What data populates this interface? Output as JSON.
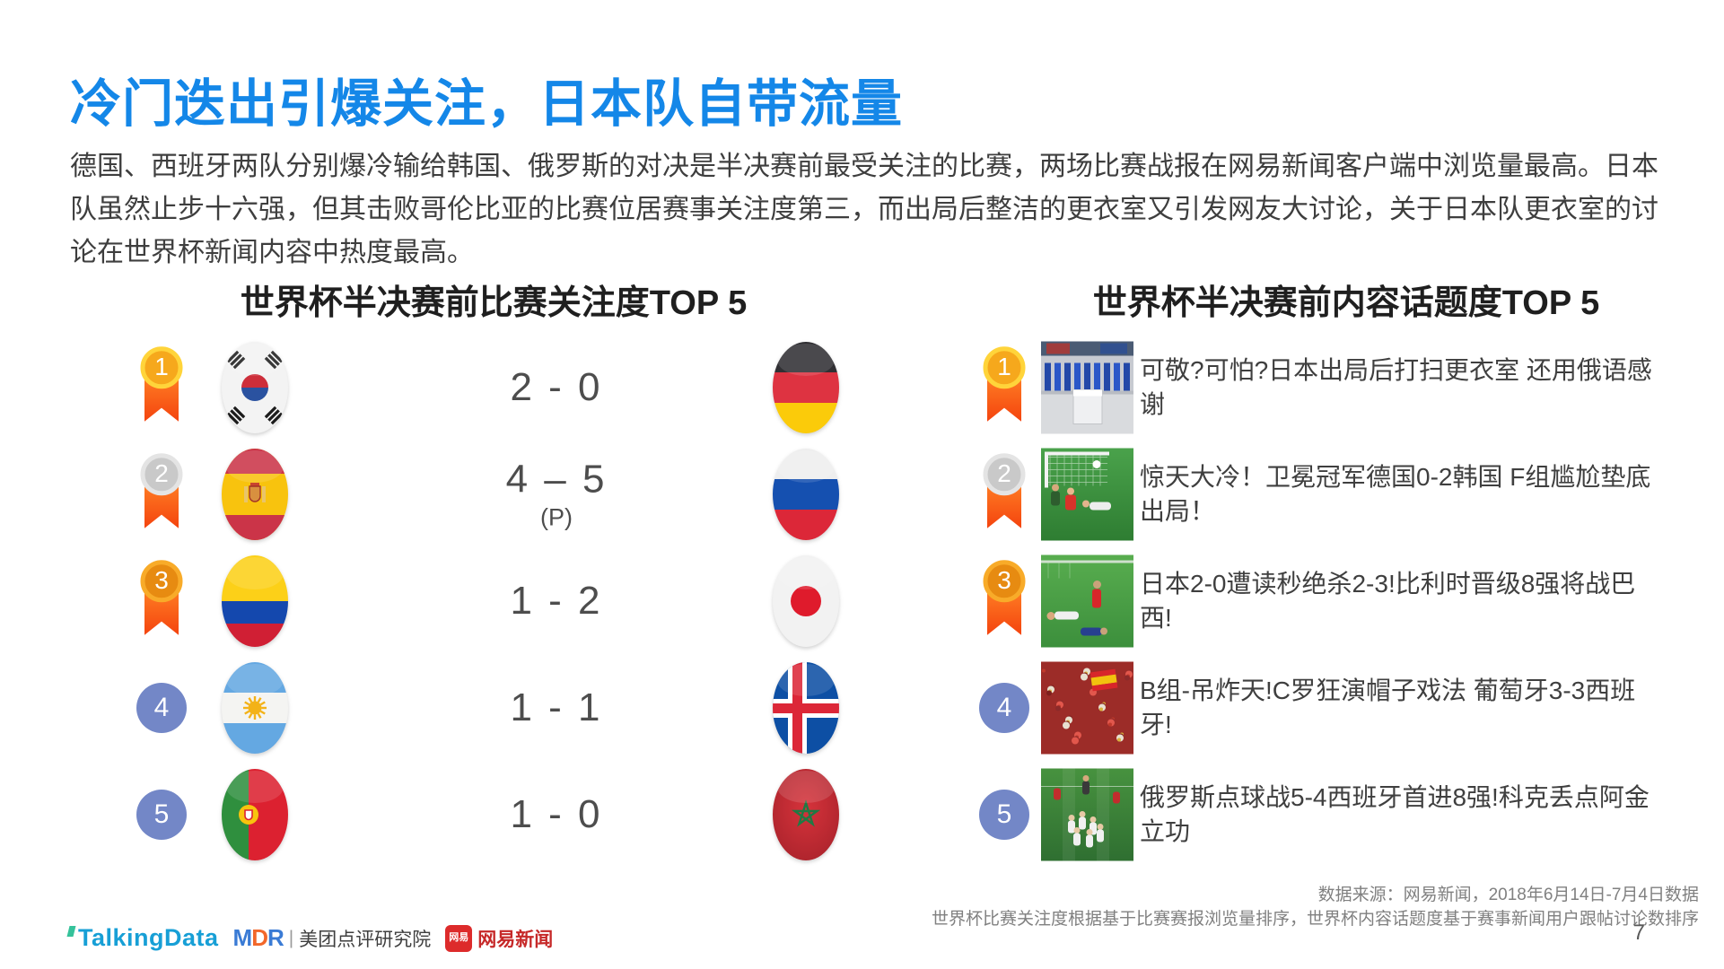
{
  "title": "冷门迭出引爆关注，日本队自带流量",
  "intro": "德国、西班牙两队分别爆冷输给韩国、俄罗斯的对决是半决赛前最受关注的比赛，两场比赛战报在网易新闻客户端中浏览量最高。日本队虽然止步十六强，但其击败哥伦比亚的比赛位居赛事关注度第三，而出局后整洁的更衣室又引发网友大讨论，关于日本队更衣室的讨论在世界杯新闻内容中热度最高。",
  "colors": {
    "title_blue": "#1487e8",
    "rank_gold": "#f6a81c",
    "rank_silver": "#c9c9c9",
    "rank_bronze": "#e78b11",
    "ribbon_orange": "#f4430e",
    "rank_plain_blue": "#7387c7"
  },
  "sections": {
    "matches": {
      "title": "世界杯半决赛前比赛关注度TOP 5",
      "rows": [
        {
          "rank": "1",
          "team1": "south-korea",
          "score": "2 - 0",
          "note": "",
          "team2": "germany"
        },
        {
          "rank": "2",
          "team1": "spain",
          "score": "4 – 5",
          "note": "(P)",
          "team2": "russia"
        },
        {
          "rank": "3",
          "team1": "colombia",
          "score": "1 - 2",
          "note": "",
          "team2": "japan"
        },
        {
          "rank": "4",
          "team1": "argentina",
          "score": "1 - 1",
          "note": "",
          "team2": "iceland"
        },
        {
          "rank": "5",
          "team1": "portugal",
          "score": "1 - 0",
          "note": "",
          "team2": "morocco"
        }
      ]
    },
    "topics": {
      "title": "世界杯半决赛前内容话题度TOP 5",
      "rows": [
        {
          "rank": "1",
          "thumb": "japan-locker-room",
          "headline": "可敬?可怕?日本出局后打扫更衣室 还用俄语感谢"
        },
        {
          "rank": "2",
          "thumb": "germany-korea-goal",
          "headline": "惊天大冷！卫冕冠军德国0-2韩国 F组尴尬垫底出局！"
        },
        {
          "rank": "3",
          "thumb": "japan-belgium-goal",
          "headline": "日本2-0遭读秒绝杀2-3!比利时晋级8强将战巴西!"
        },
        {
          "rank": "4",
          "thumb": "portugal-spain-fans",
          "headline": "B组-吊炸天!C罗狂演帽子戏法 葡萄牙3-3西班牙!"
        },
        {
          "rank": "5",
          "thumb": "russia-spain-celebration",
          "headline": "俄罗斯点球战5-4西班牙首进8强!科克丢点阿金立功"
        }
      ]
    }
  },
  "footer": {
    "logos": {
      "talkingdata": "TalkingData",
      "mdr_m": "M",
      "mdr_d": "D",
      "mdr_r": "R",
      "mdr_sep": "|",
      "mdr_label": "美团点评研究院",
      "netease_badge": "网易",
      "netease_label": "网易新闻"
    },
    "source_line1": "数据来源：网易新闻，2018年6月14日-7月4日数据",
    "source_line2": "世界杯比赛关注度根据基于比赛赛报浏览量排序，世界杯内容话题度基于赛事新闻用户跟帖讨论数排序",
    "page_number": "7"
  }
}
